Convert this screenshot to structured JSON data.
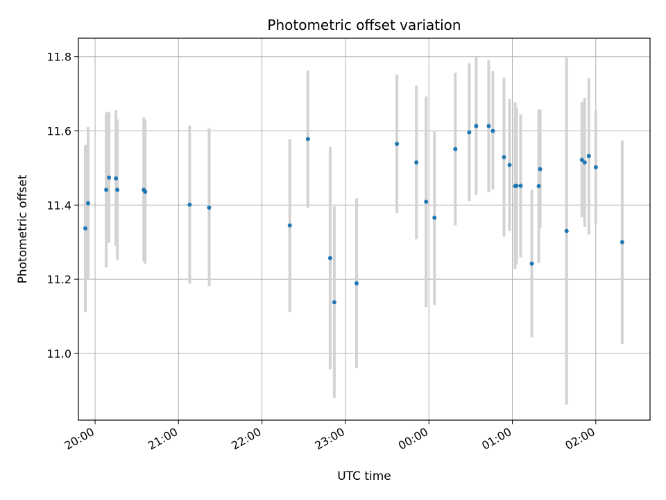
{
  "chart_data": {
    "type": "scatter",
    "title": "Photometric offset variation",
    "xlabel": "UTC time",
    "ylabel": "Photometric offset",
    "x_axis_type": "time",
    "xlim": [
      "19:48",
      "02:39"
    ],
    "ylim": [
      10.82,
      11.85
    ],
    "grid": true,
    "x_ticks": [
      "20:00",
      "21:00",
      "22:00",
      "23:00",
      "00:00",
      "01:00",
      "02:00"
    ],
    "y_ticks": [
      "11.0",
      "11.2",
      "11.4",
      "11.6",
      "11.8"
    ],
    "colors": {
      "point": "#1f77b4",
      "errorbar": "#d3d3d3",
      "grid": "#b0b0b0"
    },
    "series": [
      {
        "points": [
          {
            "t": "19:53",
            "y": 11.337,
            "lo": 11.112,
            "hi": 11.562
          },
          {
            "t": "19:55",
            "y": 11.405,
            "lo": 11.2,
            "hi": 11.61
          },
          {
            "t": "20:08",
            "y": 11.441,
            "lo": 11.232,
            "hi": 11.65
          },
          {
            "t": "20:10",
            "y": 11.474,
            "lo": 11.298,
            "hi": 11.652
          },
          {
            "t": "20:15",
            "y": 11.472,
            "lo": 11.29,
            "hi": 11.656
          },
          {
            "t": "20:16",
            "y": 11.441,
            "lo": 11.251,
            "hi": 11.631
          },
          {
            "t": "20:35",
            "y": 11.441,
            "lo": 11.248,
            "hi": 11.636
          },
          {
            "t": "20:36",
            "y": 11.436,
            "lo": 11.242,
            "hi": 11.63
          },
          {
            "t": "21:08",
            "y": 11.401,
            "lo": 11.188,
            "hi": 11.614
          },
          {
            "t": "21:22",
            "y": 11.393,
            "lo": 11.181,
            "hi": 11.607
          },
          {
            "t": "22:20",
            "y": 11.345,
            "lo": 11.112,
            "hi": 11.578
          },
          {
            "t": "22:33",
            "y": 11.578,
            "lo": 11.393,
            "hi": 11.763
          },
          {
            "t": "22:49",
            "y": 11.257,
            "lo": 10.957,
            "hi": 11.557
          },
          {
            "t": "22:52",
            "y": 11.138,
            "lo": 10.88,
            "hi": 11.396
          },
          {
            "t": "23:08",
            "y": 11.189,
            "lo": 10.96,
            "hi": 11.418
          },
          {
            "t": "23:37",
            "y": 11.565,
            "lo": 11.378,
            "hi": 11.752
          },
          {
            "t": "23:51",
            "y": 11.515,
            "lo": 11.308,
            "hi": 11.722
          },
          {
            "t": "23:58",
            "y": 11.409,
            "lo": 11.125,
            "hi": 11.693
          },
          {
            "t": "00:04",
            "y": 11.366,
            "lo": 11.131,
            "hi": 11.601
          },
          {
            "t": "00:19",
            "y": 11.551,
            "lo": 11.345,
            "hi": 11.757
          },
          {
            "t": "00:29",
            "y": 11.596,
            "lo": 11.41,
            "hi": 11.782
          },
          {
            "t": "00:34",
            "y": 11.613,
            "lo": 11.427,
            "hi": 11.799
          },
          {
            "t": "00:43",
            "y": 11.613,
            "lo": 11.435,
            "hi": 11.791
          },
          {
            "t": "00:46",
            "y": 11.6,
            "lo": 11.442,
            "hi": 11.762
          },
          {
            "t": "00:54",
            "y": 11.529,
            "lo": 11.315,
            "hi": 11.743
          },
          {
            "t": "00:58",
            "y": 11.508,
            "lo": 11.33,
            "hi": 11.686
          },
          {
            "t": "01:02",
            "y": 11.451,
            "lo": 11.228,
            "hi": 11.677
          },
          {
            "t": "01:03",
            "y": 11.452,
            "lo": 11.241,
            "hi": 11.663
          },
          {
            "t": "01:06",
            "y": 11.452,
            "lo": 11.259,
            "hi": 11.645
          },
          {
            "t": "01:14",
            "y": 11.242,
            "lo": 11.043,
            "hi": 11.441
          },
          {
            "t": "01:19",
            "y": 11.451,
            "lo": 11.244,
            "hi": 11.658
          },
          {
            "t": "01:20",
            "y": 11.497,
            "lo": 11.337,
            "hi": 11.657
          },
          {
            "t": "01:39",
            "y": 11.33,
            "lo": 10.862,
            "hi": 11.798
          },
          {
            "t": "01:50",
            "y": 11.522,
            "lo": 11.367,
            "hi": 11.678
          },
          {
            "t": "01:52",
            "y": 11.515,
            "lo": 11.341,
            "hi": 11.689
          },
          {
            "t": "01:55",
            "y": 11.532,
            "lo": 11.321,
            "hi": 11.743
          },
          {
            "t": "02:00",
            "y": 11.502,
            "lo": 11.348,
            "hi": 11.656
          },
          {
            "t": "02:19",
            "y": 11.3,
            "lo": 11.026,
            "hi": 11.574
          }
        ]
      }
    ]
  }
}
